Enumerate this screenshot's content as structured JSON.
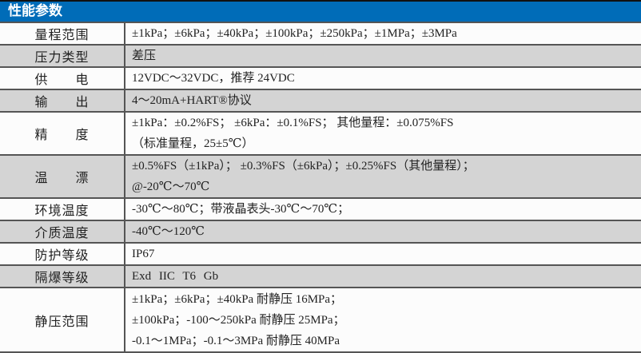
{
  "title": "性能参数",
  "colors": {
    "header_bg": "#006cb8",
    "alt_row": "#d4d4d4",
    "row": "#fcfcfc"
  },
  "rows": [
    {
      "label": "量程范围",
      "lines": [
        "±1kPa；±6kPa；±40kPa；±100kPa；±250kPa；±1MPa；±3MPa"
      ]
    },
    {
      "label": "压力类型",
      "lines": [
        "差压"
      ]
    },
    {
      "label": "供　　电",
      "lines": [
        "12VDC～32VDC，推荐 24VDC"
      ]
    },
    {
      "label": "输　　出",
      "lines": [
        "4～20mA+HART®协议"
      ]
    },
    {
      "label": "精　　度",
      "lines": [
        "±1kPa：±0.2%FS；  ±6kPa：±0.1%FS；  其他量程：±0.075%FS",
        "（标准量程，25±5℃）"
      ]
    },
    {
      "label": "温　　漂",
      "lines": [
        "±0.5%FS（±1kPa）；  ±0.3%FS（±6kPa）；±0.25%FS（其他量程）；",
        "@-20℃～70℃"
      ]
    },
    {
      "label": "环境温度",
      "lines": [
        "-30℃～80℃；带液晶表头-30℃～70℃；"
      ]
    },
    {
      "label": "介质温度",
      "lines": [
        "-40℃～120℃"
      ]
    },
    {
      "label": "防护等级",
      "lines": [
        "IP67"
      ]
    },
    {
      "label": "隔爆等级",
      "lines": [
        "Exd IIC T6 Gb"
      ]
    },
    {
      "label": "静压范围",
      "lines": [
        "±1kPa；±6kPa；±40kPa 耐静压 16MPa；",
        "±100kPa；-100～250kPa 耐静压 25MPa；",
        "-0.1～1MPa；-0.1～3MPa 耐静压 40MPa"
      ]
    }
  ]
}
